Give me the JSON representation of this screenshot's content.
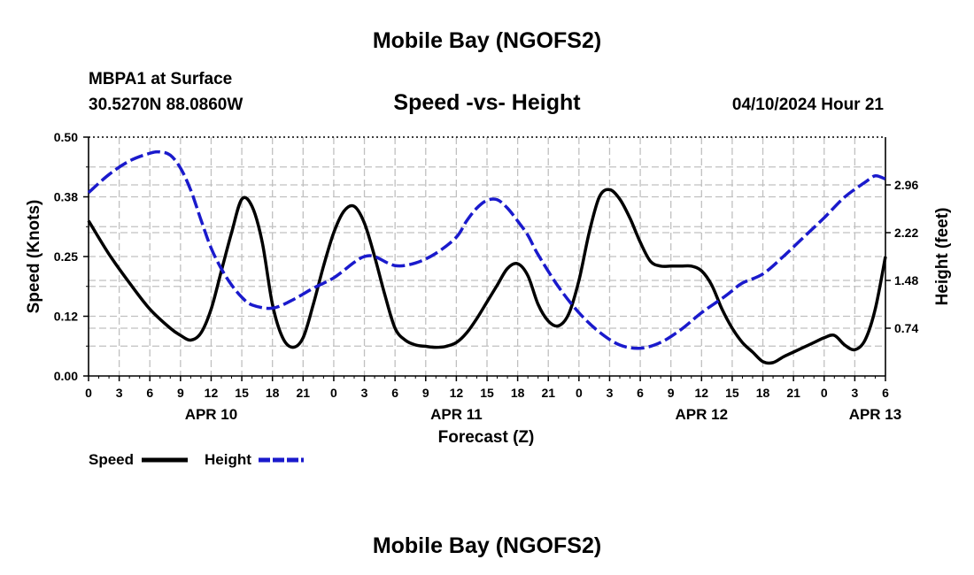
{
  "header": {
    "title": "Mobile Bay (NGOFS2)",
    "station": "MBPA1 at Surface",
    "coords": "30.5270N  88.0860W",
    "subtitle": "Speed -vs- Height",
    "datetime": "04/10/2024 Hour 21"
  },
  "footer": {
    "title": "Mobile Bay (NGOFS2)"
  },
  "legend": {
    "speed_label": "Speed",
    "height_label": "Height"
  },
  "colors": {
    "speed": "#000000",
    "height": "#1a1acc",
    "grid": "#c0c0c0"
  },
  "chart_data": {
    "type": "line",
    "title": "Speed -vs- Height",
    "xlabel": "Forecast (Z)",
    "ylabel": "Speed (Knots)",
    "y2label": "Height (feet)",
    "grid": true,
    "legend_position": "bottom-left",
    "xlim": [
      0,
      78
    ],
    "ylim": [
      0,
      0.5
    ],
    "y2lim": [
      0.0,
      3.7
    ],
    "x_ticks": [
      0,
      3,
      6,
      9,
      12,
      15,
      18,
      21,
      24,
      27,
      30,
      33,
      36,
      39,
      42,
      45,
      48,
      51,
      54,
      57,
      60,
      63,
      66,
      69,
      72,
      75,
      78
    ],
    "x_tick_labels": [
      "0",
      "3",
      "6",
      "9",
      "12",
      "15",
      "18",
      "21",
      "0",
      "3",
      "6",
      "9",
      "12",
      "15",
      "18",
      "21",
      "0",
      "3",
      "6",
      "9",
      "12",
      "15",
      "18",
      "21",
      "0",
      "3",
      "6"
    ],
    "y_ticks": [
      0,
      0.125,
      0.25,
      0.375,
      0.5
    ],
    "y_tick_labels": [
      "0.00",
      "0.12",
      "0.25",
      "0.38",
      "0.50"
    ],
    "y2_ticks": [
      0.74,
      1.48,
      2.22,
      2.96
    ],
    "y2_tick_labels": [
      "0.74",
      "1.48",
      "2.22",
      "2.96"
    ],
    "date_labels": [
      {
        "x": 12,
        "label": "APR 10"
      },
      {
        "x": 36,
        "label": "APR 11"
      },
      {
        "x": 60,
        "label": "APR 12"
      },
      {
        "x": 77,
        "label": "APR 13"
      }
    ],
    "series": [
      {
        "name": "Speed",
        "axis": "left",
        "style": "solid",
        "x": [
          0,
          2,
          4,
          6,
          8,
          9,
          10,
          11,
          12,
          13,
          14,
          15,
          16,
          17,
          18,
          19,
          20,
          21,
          22,
          23,
          24,
          25,
          26,
          27,
          28,
          29,
          30,
          31,
          32,
          33,
          34,
          35,
          36,
          37,
          38,
          39,
          40,
          41,
          42,
          43,
          44,
          45,
          46,
          47,
          48,
          49,
          50,
          51,
          52,
          53,
          54,
          55,
          56,
          57,
          58,
          59,
          60,
          61,
          62,
          63,
          64,
          65,
          66,
          67,
          68,
          69,
          70,
          71,
          72,
          73,
          74,
          75,
          76,
          77,
          78
        ],
        "values": [
          0.325,
          0.255,
          0.195,
          0.14,
          0.1,
          0.085,
          0.075,
          0.09,
          0.14,
          0.22,
          0.3,
          0.37,
          0.355,
          0.28,
          0.15,
          0.08,
          0.06,
          0.08,
          0.15,
          0.23,
          0.3,
          0.345,
          0.355,
          0.32,
          0.25,
          0.17,
          0.1,
          0.075,
          0.065,
          0.062,
          0.06,
          0.062,
          0.07,
          0.09,
          0.12,
          0.155,
          0.19,
          0.225,
          0.235,
          0.21,
          0.15,
          0.115,
          0.105,
          0.13,
          0.2,
          0.3,
          0.375,
          0.39,
          0.37,
          0.33,
          0.28,
          0.24,
          0.23,
          0.23,
          0.23,
          0.23,
          0.22,
          0.19,
          0.14,
          0.1,
          0.07,
          0.05,
          0.03,
          0.028,
          0.04,
          0.05,
          0.06,
          0.07,
          0.08,
          0.085,
          0.065,
          0.055,
          0.075,
          0.14,
          0.25
        ]
      },
      {
        "name": "Height",
        "axis": "right",
        "style": "dashed",
        "x": [
          0,
          2,
          4,
          6,
          7,
          8,
          9,
          10,
          11,
          12,
          13,
          14,
          15,
          16,
          18,
          20,
          22,
          24,
          26,
          27,
          28,
          30,
          32,
          34,
          36,
          37,
          38,
          39,
          40,
          41,
          42,
          43,
          44,
          46,
          48,
          50,
          52,
          54,
          56,
          58,
          60,
          62,
          63,
          64,
          66,
          68,
          70,
          72,
          74,
          76,
          77,
          78
        ],
        "values": [
          2.84,
          3.12,
          3.33,
          3.45,
          3.47,
          3.42,
          3.22,
          2.88,
          2.42,
          1.98,
          1.66,
          1.41,
          1.22,
          1.1,
          1.05,
          1.18,
          1.36,
          1.52,
          1.76,
          1.85,
          1.85,
          1.71,
          1.75,
          1.9,
          2.15,
          2.4,
          2.6,
          2.72,
          2.73,
          2.6,
          2.4,
          2.18,
          1.88,
          1.38,
          0.98,
          0.68,
          0.48,
          0.43,
          0.52,
          0.72,
          0.98,
          1.2,
          1.32,
          1.44,
          1.58,
          1.85,
          2.15,
          2.45,
          2.77,
          3.0,
          3.1,
          3.05
        ]
      }
    ]
  }
}
